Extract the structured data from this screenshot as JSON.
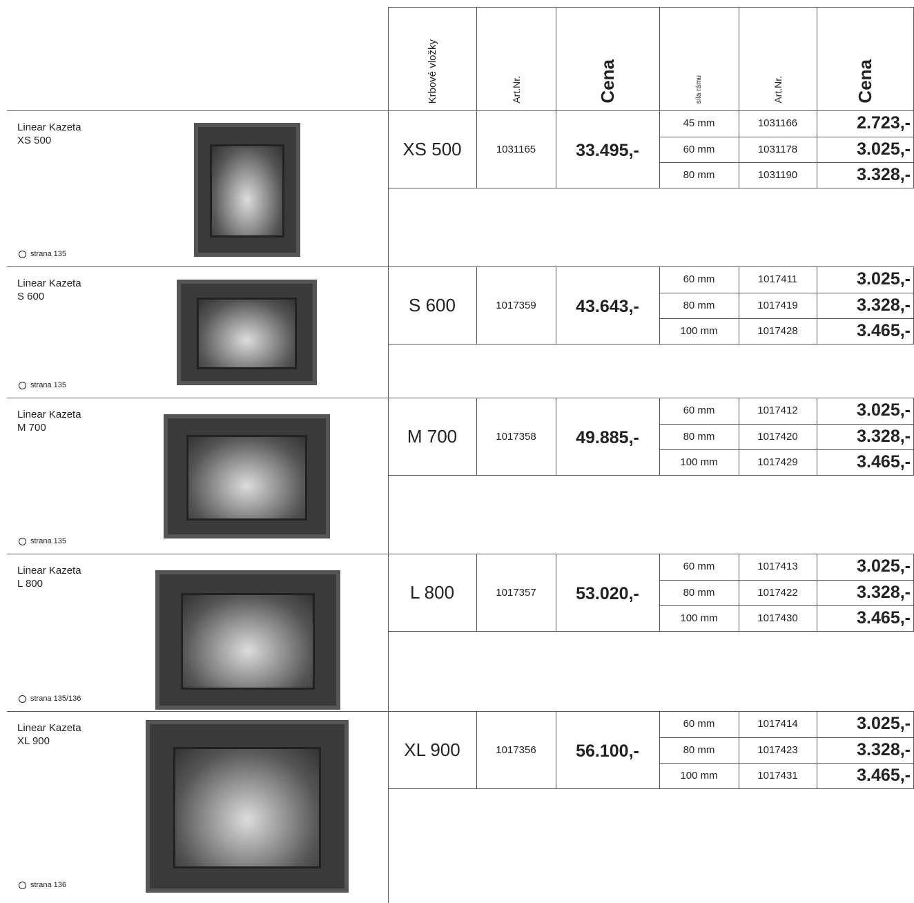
{
  "header": {
    "columns": [
      "Krbové vložky",
      "Art.Nr.",
      "Cena",
      "síla rámu",
      "Art.Nr.",
      "Cena"
    ]
  },
  "products": [
    {
      "name": "Linear Kazeta",
      "size_label": "XS 500",
      "page": "strana 135",
      "model": "XS 500",
      "art_nr": "1031165",
      "price": "33.495,-",
      "frames": [
        {
          "size": "45 mm",
          "art_nr": "1031166",
          "price": "2.723,-"
        },
        {
          "size": "60 mm",
          "art_nr": "1031178",
          "price": "3.025,-"
        },
        {
          "size": "80 mm",
          "art_nr": "1031190",
          "price": "3.328,-"
        }
      ]
    },
    {
      "name": "Linear Kazeta",
      "size_label": "S 600",
      "page": "strana 135",
      "model": "S 600",
      "art_nr": "1017359",
      "price": "43.643,-",
      "frames": [
        {
          "size": "60 mm",
          "art_nr": "1017411",
          "price": "3.025,-"
        },
        {
          "size": "80 mm",
          "art_nr": "1017419",
          "price": "3.328,-"
        },
        {
          "size": "100 mm",
          "art_nr": "1017428",
          "price": "3.465,-"
        }
      ]
    },
    {
      "name": "Linear Kazeta",
      "size_label": "M 700",
      "page": "strana 135",
      "model": "M 700",
      "art_nr": "1017358",
      "price": "49.885,-",
      "frames": [
        {
          "size": "60 mm",
          "art_nr": "1017412",
          "price": "3.025,-"
        },
        {
          "size": "80 mm",
          "art_nr": "1017420",
          "price": "3.328,-"
        },
        {
          "size": "100 mm",
          "art_nr": "1017429",
          "price": "3.465,-"
        }
      ]
    },
    {
      "name": "Linear Kazeta",
      "size_label": "L 800",
      "page": "strana 135/136",
      "model": "L 800",
      "art_nr": "1017357",
      "price": "53.020,-",
      "frames": [
        {
          "size": "60 mm",
          "art_nr": "1017413",
          "price": "3.025,-"
        },
        {
          "size": "80 mm",
          "art_nr": "1017422",
          "price": "3.328,-"
        },
        {
          "size": "100 mm",
          "art_nr": "1017430",
          "price": "3.465,-"
        }
      ]
    },
    {
      "name": "Linear Kazeta",
      "size_label": "XL 900",
      "page": "strana 136",
      "model": "XL 900",
      "art_nr": "1017356",
      "price": "56.100,-",
      "frames": [
        {
          "size": "60 mm",
          "art_nr": "1017414",
          "price": "3.025,-"
        },
        {
          "size": "80 mm",
          "art_nr": "1017423",
          "price": "3.328,-"
        },
        {
          "size": "100 mm",
          "art_nr": "1017431",
          "price": "3.465,-"
        }
      ]
    }
  ]
}
